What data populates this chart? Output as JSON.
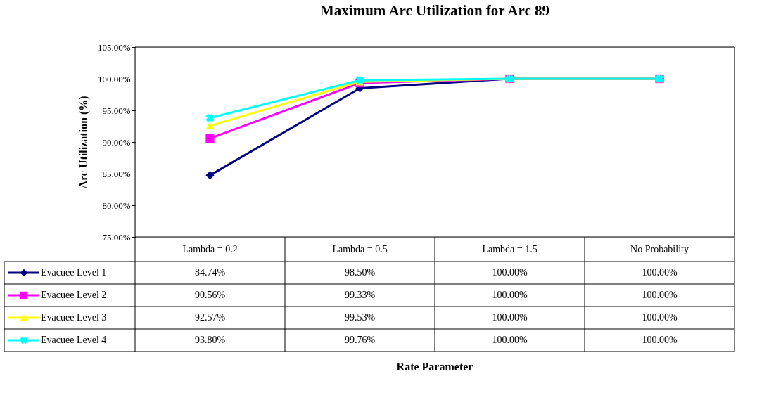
{
  "chart_data": {
    "type": "line",
    "title": "Maximum Arc Utilization for Arc 89",
    "annotations": [
      "Rate Parameter"
    ],
    "ylabel": "Arc Utilization (%)",
    "categories": [
      "Lambda = 0.2",
      "Lambda = 0.5",
      "Lambda = 1.5",
      "No Probability"
    ],
    "ylim": [
      75,
      105
    ],
    "yticks": [
      {
        "value": 75,
        "label": "75.00%"
      },
      {
        "value": 80,
        "label": "80.00%"
      },
      {
        "value": 85,
        "label": "85.00%"
      },
      {
        "value": 90,
        "label": "90.00%"
      },
      {
        "value": 95,
        "label": "95.00%"
      },
      {
        "value": 100,
        "label": "100.00%"
      },
      {
        "value": 105,
        "label": "105.00%"
      }
    ],
    "grid": false,
    "legend": "left",
    "line_style": "solid",
    "series": [
      {
        "name": "Evacuee Level 1",
        "color": "#000080",
        "marker": "diamond",
        "values": [
          84.74,
          98.5,
          100.0,
          100.0
        ],
        "value_labels": [
          "84.74%",
          "98.50%",
          "100.00%",
          "100.00%"
        ]
      },
      {
        "name": "Evacuee Level 2",
        "color": "#ff00ff",
        "marker": "square",
        "values": [
          90.56,
          99.33,
          100.0,
          100.0
        ],
        "value_labels": [
          "90.56%",
          "99.33%",
          "100.00%",
          "100.00%"
        ]
      },
      {
        "name": "Evacuee Level 3",
        "color": "#ffff00",
        "marker": "triangle",
        "values": [
          92.57,
          99.53,
          100.0,
          100.0
        ],
        "value_labels": [
          "92.57%",
          "99.53%",
          "100.00%",
          "100.00%"
        ]
      },
      {
        "name": "Evacuee Level 4",
        "color": "#00ffff",
        "marker": "cross",
        "values": [
          93.8,
          99.76,
          100.0,
          100.0
        ],
        "value_labels": [
          "93.80%",
          "99.76%",
          "100.00%",
          "100.00%"
        ]
      }
    ]
  }
}
